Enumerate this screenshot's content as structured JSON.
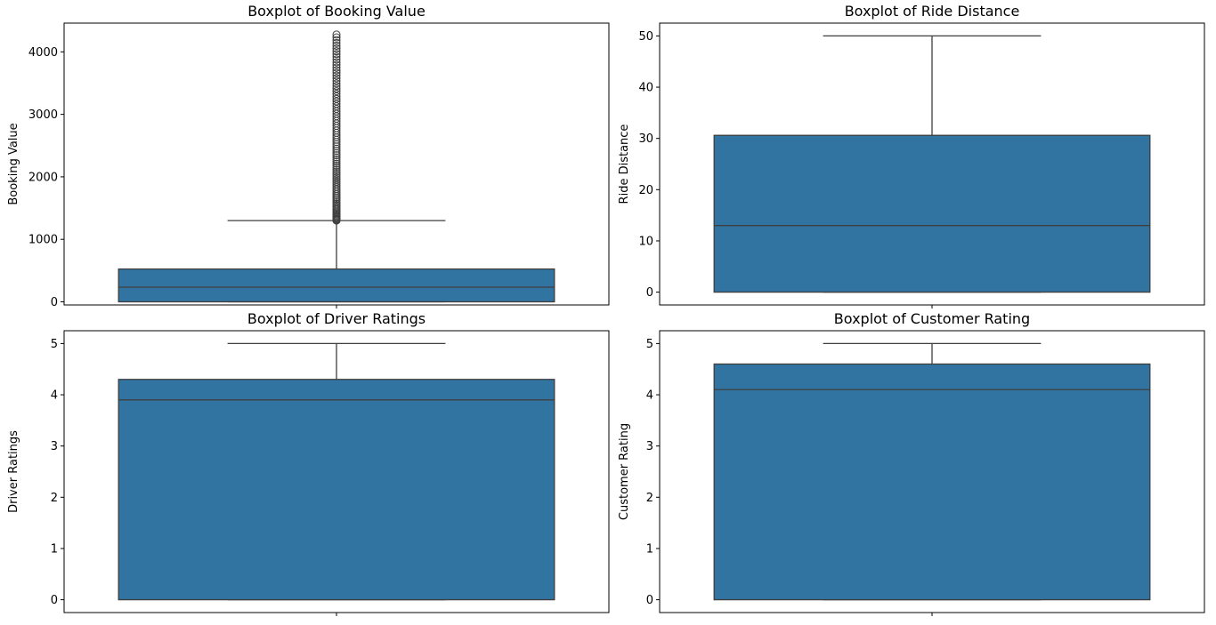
{
  "colors": {
    "box": "#3274a1",
    "line": "#3f3f3f",
    "frame": "#000000"
  },
  "chart_data": [
    {
      "type": "boxplot",
      "title": "Boxplot of Booking Value",
      "ylabel": "Booking Value",
      "ylim": [
        -50,
        4460
      ],
      "yticks": [
        0,
        1000,
        2000,
        3000,
        4000
      ],
      "ytick_labels": [
        "0",
        "1000",
        "2000",
        "3000",
        "4000"
      ],
      "whisker_low": 0,
      "q1": 0,
      "median": 235,
      "q3": 525,
      "whisker_high": 1300,
      "outliers_range": [
        1300,
        4277
      ]
    },
    {
      "type": "boxplot",
      "title": "Boxplot of Ride Distance",
      "ylabel": "Ride Distance",
      "ylim": [
        -2.5,
        52.5
      ],
      "yticks": [
        0,
        10,
        20,
        30,
        40,
        50
      ],
      "ytick_labels": [
        "0",
        "10",
        "20",
        "30",
        "40",
        "50"
      ],
      "whisker_low": 0,
      "q1": 0,
      "median": 13.0,
      "q3": 30.6,
      "whisker_high": 50
    },
    {
      "type": "boxplot",
      "title": "Boxplot of Driver Ratings",
      "ylabel": "Driver Ratings",
      "ylim": [
        -0.25,
        5.25
      ],
      "yticks": [
        0,
        1,
        2,
        3,
        4,
        5
      ],
      "ytick_labels": [
        "0",
        "1",
        "2",
        "3",
        "4",
        "5"
      ],
      "whisker_low": 0,
      "q1": 0,
      "median": 3.9,
      "q3": 4.3,
      "whisker_high": 5.0
    },
    {
      "type": "boxplot",
      "title": "Boxplot of Customer Rating",
      "ylabel": "Customer Rating",
      "ylim": [
        -0.25,
        5.25
      ],
      "yticks": [
        0,
        1,
        2,
        3,
        4,
        5
      ],
      "ytick_labels": [
        "0",
        "1",
        "2",
        "3",
        "4",
        "5"
      ],
      "whisker_low": 0,
      "q1": 0,
      "median": 4.1,
      "q3": 4.6,
      "whisker_high": 5.0
    }
  ]
}
